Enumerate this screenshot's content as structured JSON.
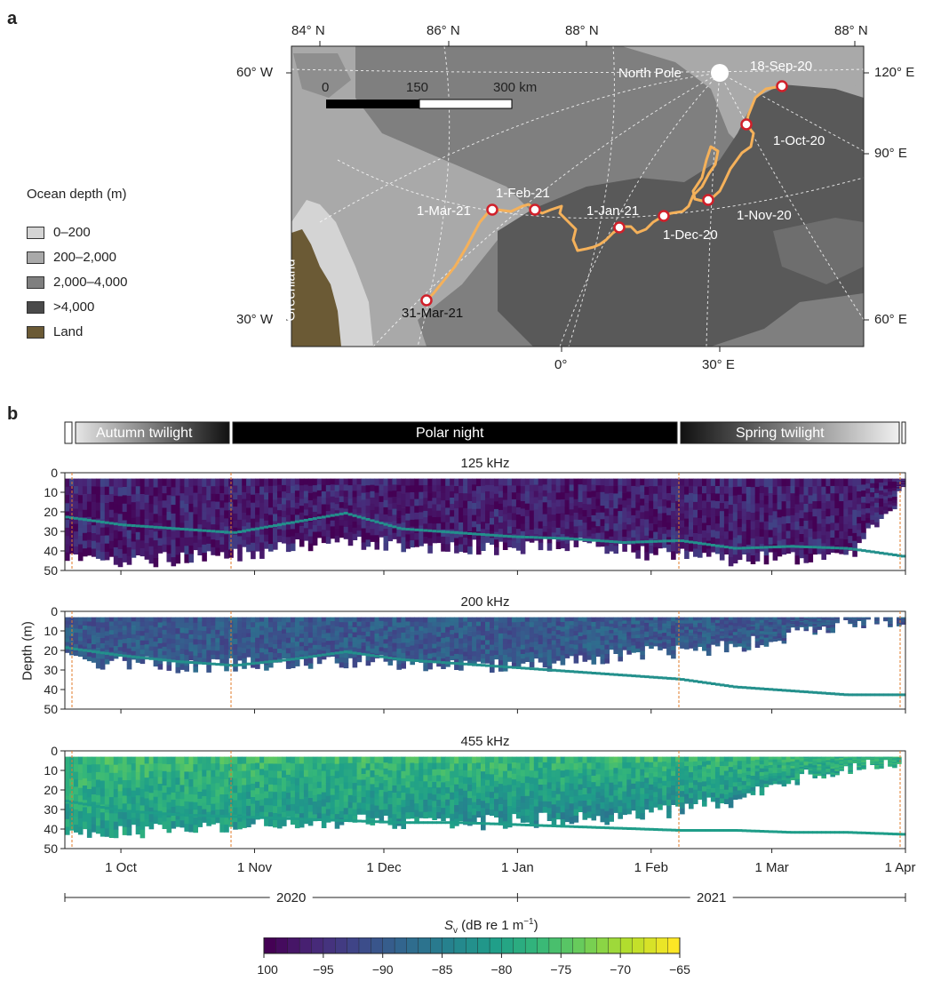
{
  "panel_a_letter": "a",
  "panel_b_letter": "b",
  "map": {
    "top_labels": [
      "84° N",
      "86° N",
      "88° N",
      "88° N"
    ],
    "left_labels": [
      "60° W",
      "30° W"
    ],
    "right_labels": [
      "120° E",
      "90° E",
      "60° E"
    ],
    "bottom_labels": [
      "0°",
      "30° E"
    ],
    "north_pole_label": "North Pole",
    "greenland_label": "Greenland",
    "scale_labels": [
      "0",
      "150",
      "300 km"
    ],
    "waypoints": [
      "18-Sep-20",
      "1-Oct-20",
      "1-Nov-20",
      "1-Dec-20",
      "1-Jan-21",
      "1-Feb-21",
      "1-Mar-21",
      "31-Mar-21"
    ],
    "colors": {
      "depth_0_200": "#d4d4d4",
      "depth_200_2000": "#a9a9a9",
      "depth_2000_4000": "#7f7f7f",
      "depth_4000": "#5a5a5a",
      "land": "#6b5a35",
      "track": "#f5b15a",
      "marker": "#d0202a"
    }
  },
  "legend": {
    "title": "Ocean depth (m)",
    "items": [
      "0–200",
      "200–2,000",
      "2,000–4,000",
      ">4,000",
      "Land"
    ]
  },
  "season_bar": [
    "Autumn twilight",
    "Polar night",
    "Spring twilight"
  ],
  "chart_data": [
    {
      "type": "heatmap",
      "title": "125 kHz",
      "ylabel": "Depth (m)",
      "ylim": [
        50,
        0
      ],
      "yticks": [
        0,
        10,
        20,
        30,
        40,
        50
      ],
      "xlim": [
        "2020-09-18",
        "2021-04-01"
      ],
      "xticks": [
        "1 Oct",
        "1 Nov",
        "1 Dec",
        "1 Jan",
        "1 Feb",
        "1 Mar",
        "1 Apr"
      ],
      "layer_depth_m": [
        22,
        26,
        28,
        30,
        25,
        20,
        28,
        30,
        32,
        33,
        35,
        34,
        38,
        37,
        38,
        42
      ],
      "max_depth_m": [
        45,
        45,
        44,
        42,
        38,
        36,
        37,
        38,
        38,
        36,
        40,
        42,
        44,
        44,
        44,
        10
      ]
    },
    {
      "type": "heatmap",
      "title": "200 kHz",
      "ylabel": "Depth (m)",
      "ylim": [
        50,
        0
      ],
      "yticks": [
        0,
        10,
        20,
        30,
        40,
        50
      ],
      "xlim": [
        "2020-09-18",
        "2021-04-01"
      ],
      "xticks": [
        "1 Oct",
        "1 Nov",
        "1 Dec",
        "1 Jan",
        "1 Feb",
        "1 Mar",
        "1 Apr"
      ],
      "layer_depth_m": [
        18,
        22,
        25,
        27,
        24,
        20,
        24,
        26,
        28,
        30,
        32,
        34,
        38,
        40,
        42,
        42
      ],
      "max_depth_m": [
        25,
        26,
        28,
        27,
        26,
        25,
        26,
        28,
        28,
        26,
        22,
        20,
        18,
        12,
        5,
        4
      ]
    },
    {
      "type": "heatmap",
      "title": "455 kHz",
      "ylabel": "Depth (m)",
      "ylim": [
        50,
        0
      ],
      "yticks": [
        0,
        10,
        20,
        30,
        40,
        50
      ],
      "xlim": [
        "2020-09-18",
        "2021-04-01"
      ],
      "xticks": [
        "1 Oct",
        "1 Nov",
        "1 Dec",
        "1 Jan",
        "1 Feb",
        "1 Mar",
        "1 Apr"
      ],
      "layer_depth_m": [
        25,
        30,
        32,
        33,
        34,
        35,
        36,
        36,
        37,
        38,
        39,
        40,
        40,
        41,
        41,
        42
      ],
      "max_depth_m": [
        44,
        42,
        40,
        38,
        37,
        36,
        36,
        37,
        36,
        35,
        34,
        30,
        25,
        15,
        8,
        5
      ]
    }
  ],
  "years": [
    "2020",
    "2021"
  ],
  "colorbar": {
    "label_symbol": "S",
    "label_sub": "v",
    "label_rest": " (dB re 1 m",
    "label_sup": "−1",
    "label_end": ")",
    "ticks": [
      "−100",
      "−95",
      "−90",
      "−85",
      "−80",
      "−75",
      "−70",
      "−65"
    ],
    "range": [
      -100,
      -65
    ],
    "colors": [
      "#440154",
      "#482878",
      "#3e4989",
      "#31688e",
      "#26828e",
      "#1f9e89",
      "#35b779",
      "#6ece58",
      "#b5de2b",
      "#fde725"
    ]
  }
}
